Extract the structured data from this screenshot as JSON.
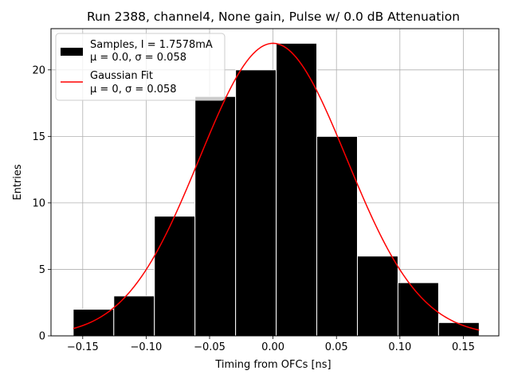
{
  "chart_data": {
    "type": "bar",
    "title": "Run 2388, channel4, None gain, Pulse w/ 0.0 dB Attenuation",
    "xlabel": "Timing from OFCs [ns]",
    "ylabel": "Entries",
    "xlim": [
      -0.175,
      0.178
    ],
    "ylim": [
      0,
      23.1
    ],
    "xticks": [
      -0.15,
      -0.1,
      -0.05,
      0.0,
      0.05,
      0.1,
      0.15
    ],
    "xtick_labels": [
      "−0.15",
      "−0.10",
      "−0.05",
      "0.00",
      "0.05",
      "0.10",
      "0.15"
    ],
    "yticks": [
      0,
      5,
      10,
      15,
      20
    ],
    "ytick_labels": [
      "0",
      "5",
      "10",
      "15",
      "20"
    ],
    "grid": true,
    "legend_position": "top-left",
    "histogram": {
      "name": "Samples, I = 1.7578mA\nμ = 0.0, σ = 0.058",
      "bin_edges": [
        -0.1575,
        -0.1255,
        -0.0935,
        -0.0615,
        -0.0295,
        0.0025,
        0.0345,
        0.0665,
        0.0985,
        0.1305,
        0.1625
      ],
      "counts": [
        2,
        3,
        9,
        18,
        20,
        22,
        15,
        6,
        4,
        1
      ],
      "color": "#000000"
    },
    "fit": {
      "name": "Gaussian Fit\nμ = 0, σ = 0.058",
      "type": "gaussian",
      "amplitude": 22,
      "mu": 0,
      "sigma": 0.058,
      "x_range": [
        -0.1575,
        0.1625
      ],
      "color": "#ff0000"
    },
    "legend": [
      {
        "line1": "Samples, I = 1.7578mA",
        "line2": "μ = 0.0, σ = 0.058",
        "marker": "patch",
        "color": "#000000"
      },
      {
        "line1": "Gaussian Fit",
        "line2": "μ = 0, σ = 0.058",
        "marker": "line",
        "color": "#ff0000"
      }
    ]
  }
}
